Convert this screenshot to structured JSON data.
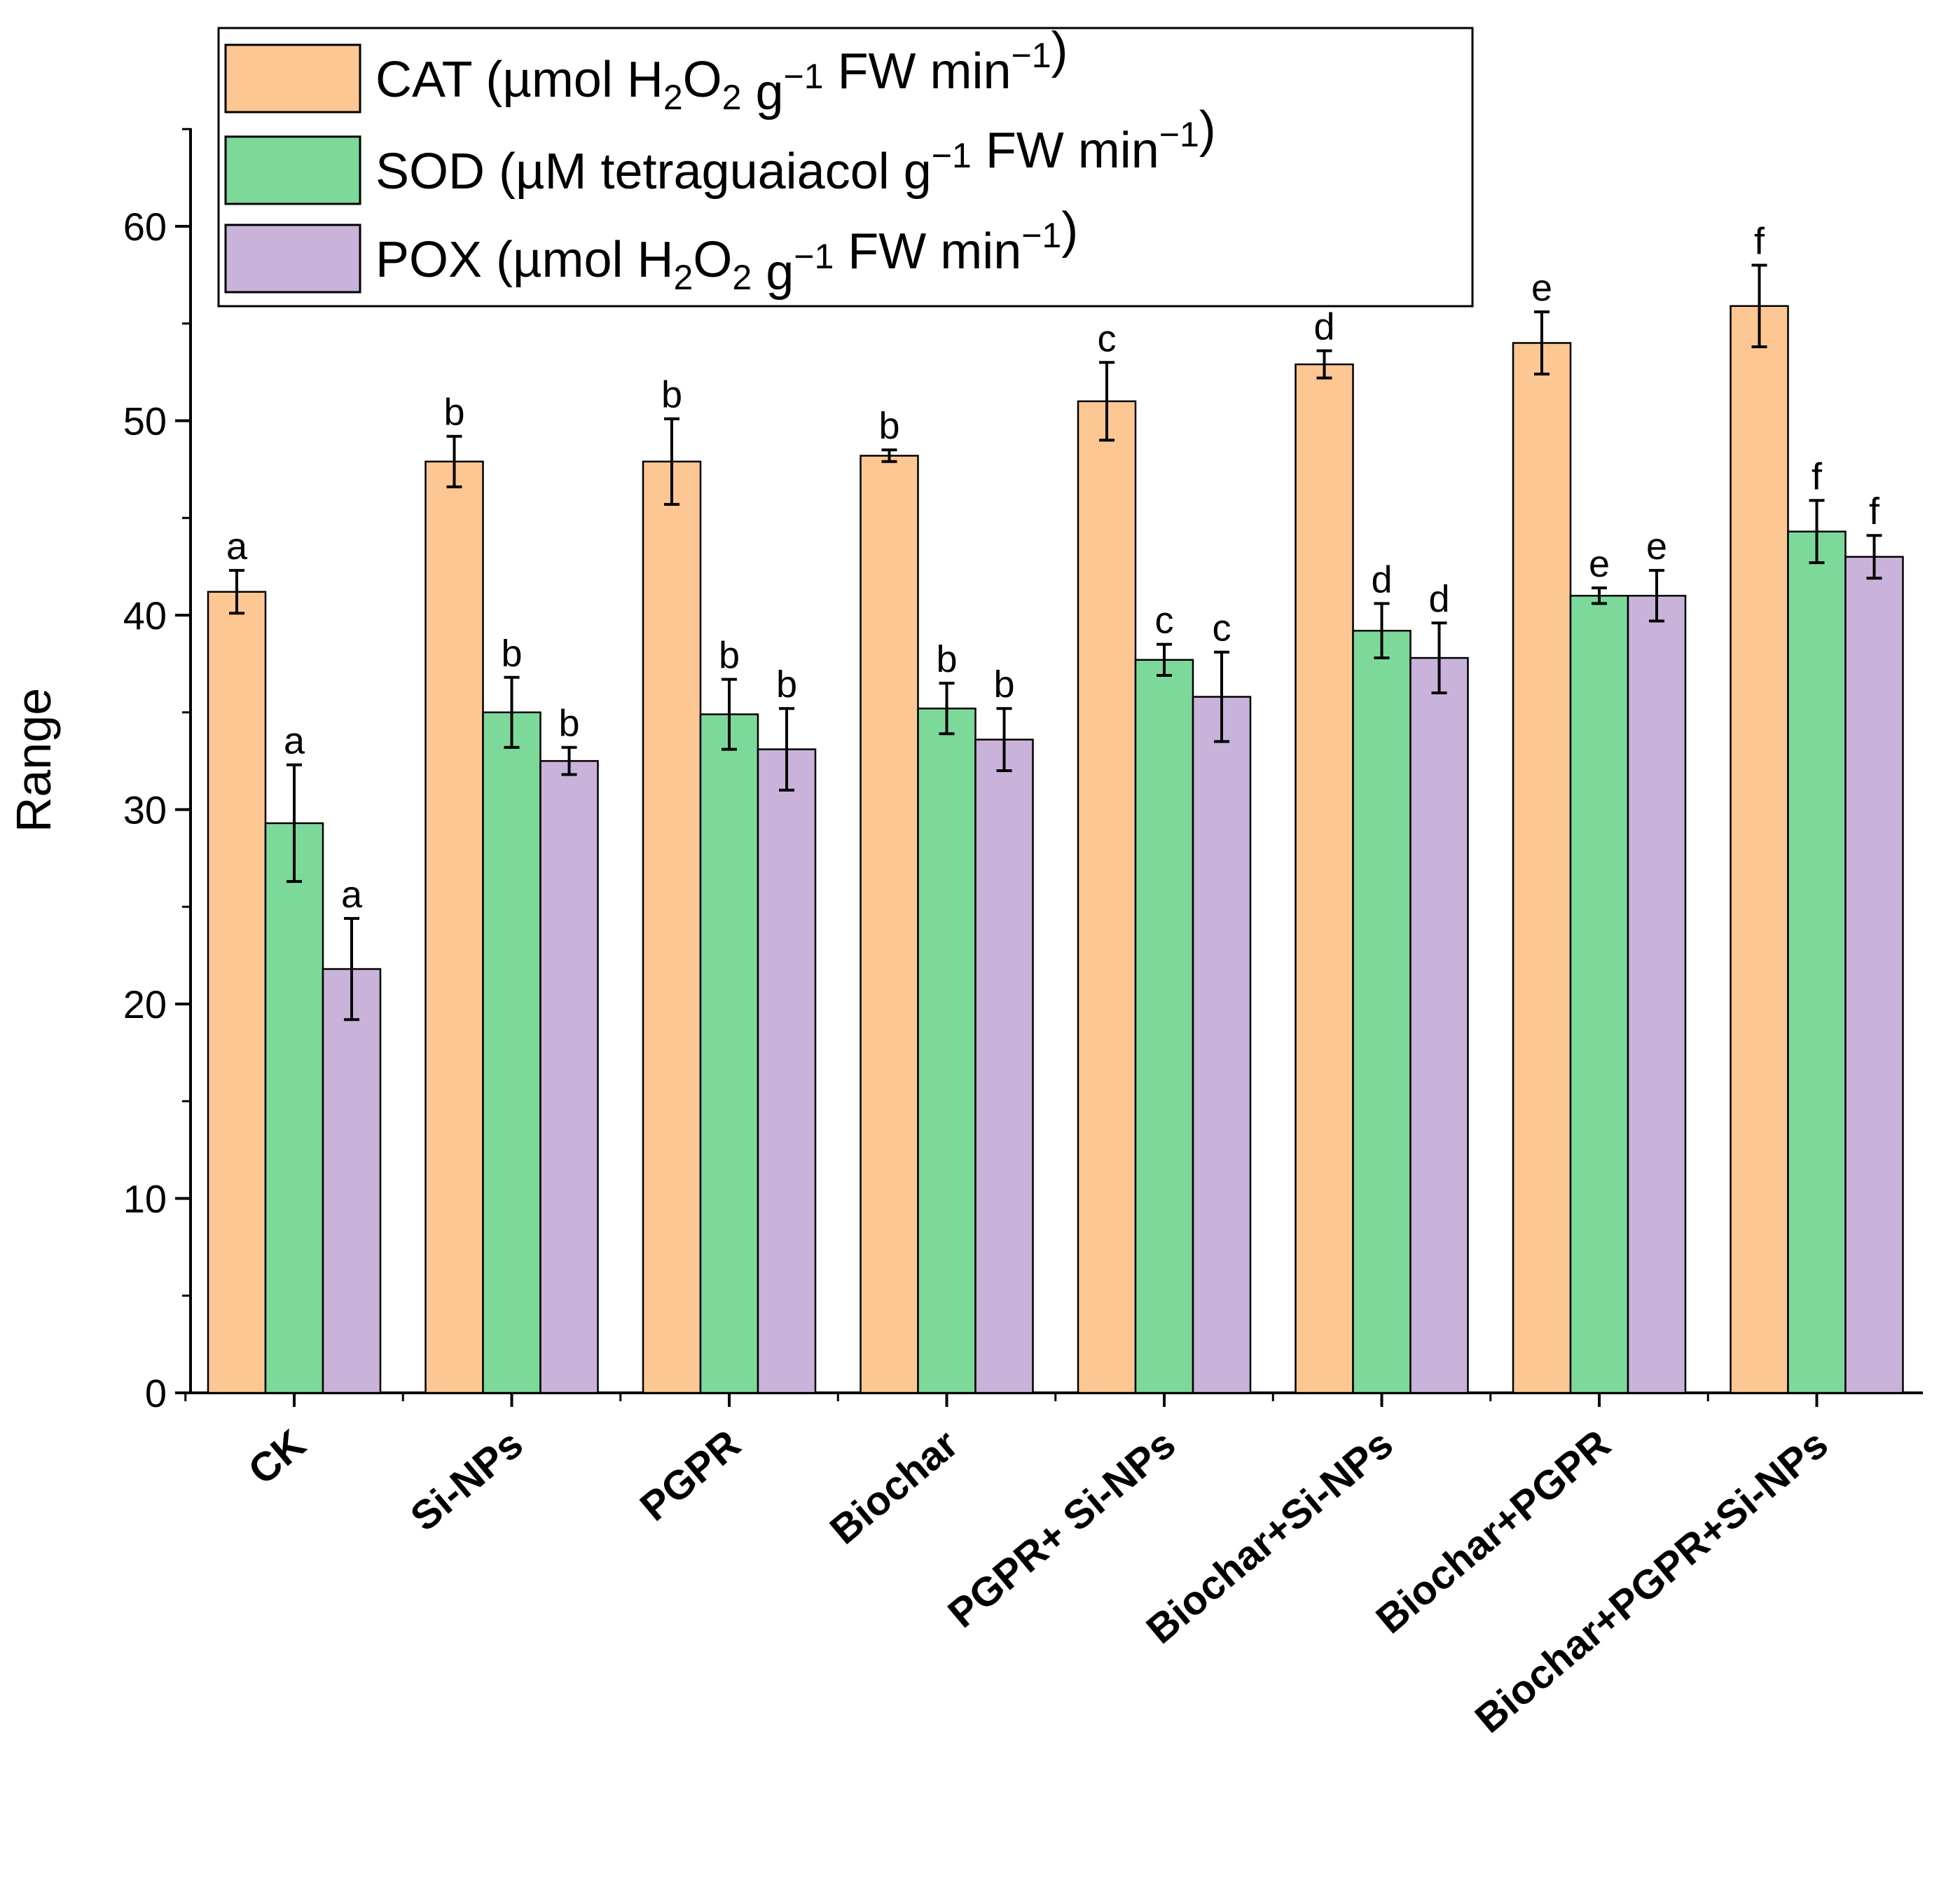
{
  "chart_data": {
    "type": "bar",
    "title": "",
    "xlabel": "",
    "ylabel": "Range",
    "ylim": [
      0,
      65
    ],
    "yticks": [
      0,
      10,
      20,
      30,
      40,
      50,
      60
    ],
    "categories": [
      "CK",
      "Si-NPs",
      "PGPR",
      "Biochar",
      "PGPR+ Si-NPs",
      "Biochar+Si-NPs",
      "Biochar+PGPR",
      "Biochar+PGPR+Si-NPs"
    ],
    "series": [
      {
        "key": "cat",
        "name": "CAT",
        "legend_label": "CAT (µmol H2O2 g−1 FW min−1)",
        "color": "#FDC793",
        "values": [
          41.2,
          47.9,
          47.9,
          48.2,
          51.0,
          52.9,
          54.0,
          55.9
        ],
        "errors": [
          1.1,
          1.3,
          2.2,
          0.3,
          2.0,
          0.7,
          1.6,
          2.1
        ],
        "letters": [
          "a",
          "b",
          "b",
          "b",
          "c",
          "d",
          "e",
          "f"
        ]
      },
      {
        "key": "sod",
        "name": "SOD",
        "legend_label": "SOD (µM tetraguaiacol g−1 FW min−1)",
        "color": "#7DD99A",
        "values": [
          29.3,
          35.0,
          34.9,
          35.2,
          37.7,
          39.2,
          41.0,
          44.3
        ],
        "errors": [
          3.0,
          1.8,
          1.8,
          1.3,
          0.8,
          1.4,
          0.4,
          1.6
        ],
        "letters": [
          "a",
          "b",
          "b",
          "b",
          "c",
          "d",
          "e",
          "f"
        ]
      },
      {
        "key": "pox",
        "name": "POX",
        "legend_label": "POX (µmol H2O2 g−1 FW min−1)",
        "color": "#C9B3DA",
        "values": [
          21.8,
          32.5,
          33.1,
          33.6,
          35.8,
          37.8,
          41.0,
          43.0
        ],
        "errors": [
          2.6,
          0.7,
          2.1,
          1.6,
          2.3,
          1.8,
          1.3,
          1.1
        ],
        "letters": [
          "a",
          "b",
          "b",
          "b",
          "c",
          "d",
          "e",
          "f"
        ]
      }
    ],
    "legend_position": "top-left"
  }
}
